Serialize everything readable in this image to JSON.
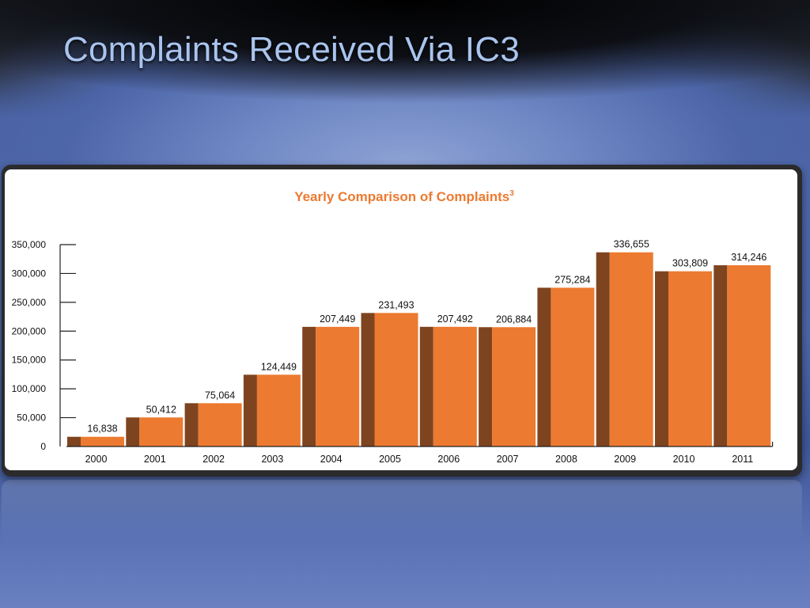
{
  "slide": {
    "title": "Complaints Received Via IC3"
  },
  "colors": {
    "bar_front": "#ec7a30",
    "bar_side": "#7e4420",
    "chart_title": "#ec7a30",
    "title_text": "#a9c4ee"
  },
  "chart_data": {
    "type": "bar",
    "title": "Yearly Comparison of Complaints",
    "title_superscript": "3",
    "xlabel": "",
    "ylabel": "",
    "ylim": [
      0,
      350000
    ],
    "yticks": [
      0,
      50000,
      100000,
      150000,
      200000,
      250000,
      300000,
      350000
    ],
    "ytick_labels": [
      "0",
      "50,000",
      "100,000",
      "150,000",
      "200,000",
      "250,000",
      "300,000",
      "350,000"
    ],
    "grid": false,
    "categories": [
      "2000",
      "2001",
      "2002",
      "2003",
      "2004",
      "2005",
      "2006",
      "2007",
      "2008",
      "2009",
      "2010",
      "2011"
    ],
    "values": [
      16838,
      50412,
      75064,
      124449,
      207449,
      231493,
      207492,
      206884,
      275284,
      336655,
      303809,
      314246
    ],
    "value_labels": [
      "16,838",
      "50,412",
      "75,064",
      "124,449",
      "207,449",
      "231,493",
      "207,492",
      "206,884",
      "275,284",
      "336,655",
      "303,809",
      "314,246"
    ]
  }
}
